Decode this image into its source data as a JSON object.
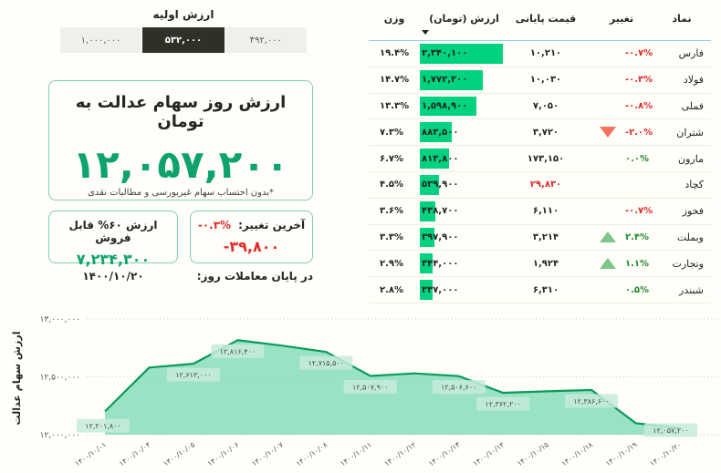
{
  "initial_value": {
    "title": "ارزش اولیه",
    "options": [
      "۴۹۲,۰۰۰",
      "۵۳۲,۰۰۰",
      "۱,۰۰۰,۰۰۰"
    ],
    "selected": "۵۳۲,۰۰۰"
  },
  "main_card": {
    "title": "ارزش روز سهام عدالت به تومان",
    "value": "۱۲,۰۵۷,۲۰۰",
    "note": "*بدون احتساب سهام غیربورسی و مطالبات نقدی"
  },
  "last_change_card": {
    "label": "آخرین تغییر:",
    "percent": "-۰.۳%",
    "amount": "-۳۹,۸۰۰"
  },
  "sellable_card": {
    "title": "ارزش ۶۰% قابل فروش",
    "value": "۷,۲۳۴,۳۰۰"
  },
  "date_row": {
    "label": "در پایان معاملات روز:",
    "date": "۱۴۰۰/۱۰/۲۰"
  },
  "table": {
    "headers": {
      "symbol": "نماد",
      "change": "تغییر",
      "close_price": "قیمت پایانی",
      "value": "ارزش (تومان)",
      "weight": "وزن"
    },
    "sort_column": "value",
    "sort_direction": "desc",
    "colors": {
      "bar": "#00d27f",
      "positive": "#1e8a2e",
      "negative": "#e02b2b",
      "arrow_down": "#f8715f",
      "arrow_up": "#7cc68a"
    },
    "rows": [
      {
        "symbol": "فارس",
        "change": "-۰.۷%",
        "change_sign": "neg",
        "arrow": "",
        "close_price": "۱۰,۲۱۰",
        "price_color": "",
        "value": "۲,۳۴۰,۱۰۰",
        "bar_pct": 100,
        "weight": "۱۹.۴%"
      },
      {
        "symbol": "فولاد",
        "change": "-۰.۳%",
        "change_sign": "neg",
        "arrow": "",
        "close_price": "۱۰,۰۳۰",
        "price_color": "",
        "value": "۱,۷۷۲,۳۰۰",
        "bar_pct": 76,
        "weight": "۱۴.۷%"
      },
      {
        "symbol": "فملی",
        "change": "-۰.۸%",
        "change_sign": "neg",
        "arrow": "",
        "close_price": "۷,۰۵۰",
        "price_color": "",
        "value": "۱,۵۹۸,۹۰۰",
        "bar_pct": 68,
        "weight": "۱۳.۳%"
      },
      {
        "symbol": "شتران",
        "change": "-۲.۰%",
        "change_sign": "neg",
        "arrow": "down",
        "close_price": "۳,۷۲۰",
        "price_color": "",
        "value": "۸۸۳,۵۰۰",
        "bar_pct": 38,
        "weight": "۷.۳%"
      },
      {
        "symbol": "مارون",
        "change": "۰.۰%",
        "change_sign": "pos",
        "arrow": "",
        "close_price": "۱۷۳,۱۵۰",
        "price_color": "",
        "value": "۸۱۳,۸۰۰",
        "bar_pct": 35,
        "weight": "۶.۷%"
      },
      {
        "symbol": "کچاد",
        "change": "",
        "change_sign": "",
        "arrow": "",
        "close_price": "۲۹,۸۳۰",
        "price_color": "neg",
        "value": "۵۳۹,۹۰۰",
        "bar_pct": 23,
        "weight": "۴.۵%"
      },
      {
        "symbol": "فخوز",
        "change": "-۰.۷%",
        "change_sign": "neg",
        "arrow": "",
        "close_price": "۶,۱۱۰",
        "price_color": "",
        "value": "۴۳۸,۷۰۰",
        "bar_pct": 19,
        "weight": "۳.۶%"
      },
      {
        "symbol": "وبملت",
        "change": "۲.۴%",
        "change_sign": "pos",
        "arrow": "up",
        "close_price": "۳,۲۱۴",
        "price_color": "",
        "value": "۳۹۷,۹۰۰",
        "bar_pct": 17,
        "weight": "۳.۳%"
      },
      {
        "symbol": "وتجارت",
        "change": "۱.۱%",
        "change_sign": "pos",
        "arrow": "up",
        "close_price": "۱,۹۲۴",
        "price_color": "",
        "value": "۳۴۴,۰۰۰",
        "bar_pct": 15,
        "weight": "۲.۹%"
      },
      {
        "symbol": "شبندر",
        "change": "۰.۵%",
        "change_sign": "pos",
        "arrow": "",
        "close_price": "۶,۳۱۰",
        "price_color": "",
        "value": "۳۳۷,۰۰۰",
        "bar_pct": 15,
        "weight": "۲.۸%"
      }
    ]
  },
  "chart_data": {
    "type": "area",
    "title": "",
    "xlabel": "",
    "ylabel": "ارزش سهام عدالت",
    "ylim": [
      12000000,
      13000000
    ],
    "yticks": [
      12000000,
      12500000,
      13000000
    ],
    "ytick_labels": [
      "۱۲,۰۰۰,۰۰۰",
      "۱۲,۵۰۰,۰۰۰",
      "۱۳,۰۰۰,۰۰۰"
    ],
    "grid": true,
    "legend": "none",
    "line_color": "#0a9b5c",
    "fill_color": "#93e0c0",
    "categories": [
      "۱۴۰۰/۱۰/۰۱",
      "۱۴۰۰/۱۰/۰۴",
      "۱۴۰۰/۱۰/۰۵",
      "۱۴۰۰/۱۰/۰۶",
      "۱۴۰۰/۱۰/۰۷",
      "۱۴۰۰/۱۰/۰۸",
      "۱۴۰۰/۱۰/۱۱",
      "۱۴۰۰/۱۰/۱۲",
      "۱۴۰۰/۱۰/۱۳",
      "۱۴۰۰/۱۰/۱۴",
      "۱۴۰۰/۱۰/۱۵",
      "۱۴۰۰/۱۰/۱۸",
      "۱۴۰۰/۱۰/۱۹",
      "۱۴۰۰/۱۰/۲۰"
    ],
    "values": [
      12201800,
      12580000,
      12613000,
      12816400,
      12770000,
      12715500,
      12507900,
      12530000,
      12506600,
      12362200,
      12375000,
      12386600,
      12100000,
      12057200
    ],
    "data_labels": [
      {
        "index": 0,
        "text": "۱۲,۲۰۱,۸۰۰"
      },
      {
        "index": 2,
        "text": "۱۲,۶۱۳,۰۰۰"
      },
      {
        "index": 3,
        "text": "۱۲,۸۱۶,۴۰۰"
      },
      {
        "index": 5,
        "text": "۱۲,۷۱۵,۵۰۰"
      },
      {
        "index": 6,
        "text": "۱۲,۵۰۷,۹۰۰"
      },
      {
        "index": 8,
        "text": "۱۲,۵۰۶,۶۰۰"
      },
      {
        "index": 9,
        "text": "۱۲,۳۶۲,۲۰۰"
      },
      {
        "index": 11,
        "text": "۱۲,۳۸۶,۶۰۰"
      },
      {
        "index": 13,
        "text": "۱۲,۰۵۷,۲۰۰"
      }
    ]
  }
}
